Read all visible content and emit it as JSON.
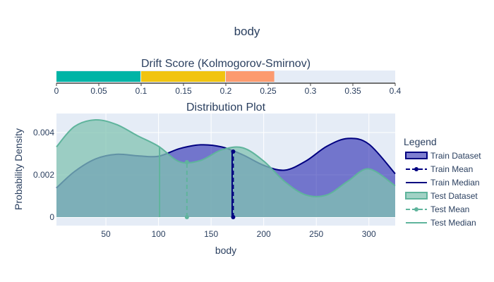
{
  "figure": {
    "title": "body"
  },
  "chart_data": [
    {
      "type": "bar",
      "orientation": "horizontal",
      "title": "Drift Score (Kolmogorov-Smirnov)",
      "xlim": [
        0,
        0.4
      ],
      "ticks": [
        "0",
        "0.05",
        "0.1",
        "0.15",
        "0.2",
        "0.25",
        "0.3",
        "0.35",
        "0.4"
      ],
      "tick_values": [
        0,
        0.05,
        0.1,
        0.15,
        0.2,
        0.25,
        0.3,
        0.35,
        0.4
      ],
      "segments": [
        {
          "from": 0,
          "to": 0.1,
          "color": "#00b4a6"
        },
        {
          "from": 0.1,
          "to": 0.2,
          "color": "#f1c40f"
        },
        {
          "from": 0.2,
          "to": 0.258,
          "color": "#fc9a6e"
        }
      ],
      "value": 0.258
    },
    {
      "type": "area",
      "title": "Distribution Plot",
      "xlabel": "body",
      "ylabel": "Probability Density",
      "xlim": [
        3,
        325
      ],
      "ylim": [
        -0.0004,
        0.0049
      ],
      "x_ticks": [
        "50",
        "100",
        "150",
        "200",
        "250",
        "300"
      ],
      "x_tick_values": [
        50,
        100,
        150,
        200,
        250,
        300
      ],
      "y_ticks": [
        "0",
        "0.002",
        "0.004"
      ],
      "y_tick_values": [
        0,
        0.002,
        0.004
      ],
      "grid": true,
      "series": [
        {
          "name": "Train Dataset",
          "color": "#000080",
          "fill": "rgba(20,20,170,0.55)",
          "x": [
            3,
            20,
            40,
            60,
            80,
            100,
            120,
            140,
            160,
            180,
            200,
            220,
            240,
            260,
            280,
            300,
            325
          ],
          "y": [
            0.00138,
            0.00215,
            0.00275,
            0.00297,
            0.0029,
            0.00288,
            0.00324,
            0.00342,
            0.00332,
            0.00295,
            0.00245,
            0.00222,
            0.00265,
            0.00335,
            0.00372,
            0.00345,
            0.00205
          ]
        },
        {
          "name": "Test Dataset",
          "color": "#5fb49c",
          "fill": "rgba(130,195,178,0.75)",
          "x": [
            3,
            20,
            40,
            60,
            80,
            100,
            120,
            140,
            160,
            180,
            200,
            220,
            240,
            260,
            280,
            300,
            325
          ],
          "y": [
            0.00332,
            0.00428,
            0.0046,
            0.00438,
            0.00385,
            0.00335,
            0.00262,
            0.00268,
            0.00318,
            0.00328,
            0.00265,
            0.00168,
            0.00105,
            0.00105,
            0.0017,
            0.00228,
            0.00148
          ]
        }
      ],
      "lines": [
        {
          "name": "Train Mean",
          "x": 171,
          "y": 0.0031,
          "color": "#000080",
          "dash": true,
          "marker": true
        },
        {
          "name": "Train Median",
          "x": 170,
          "y": 0.0031,
          "color": "#000080",
          "dash": false,
          "marker": false
        },
        {
          "name": "Test Mean",
          "x": 127,
          "y": 0.0026,
          "color": "#5fb49c",
          "dash": true,
          "marker": true
        },
        {
          "name": "Test Median",
          "x": 101,
          "y": 0.0033,
          "color": "#5fb49c",
          "dash": false,
          "marker": false
        }
      ],
      "legend": {
        "title": "Legend",
        "placement": "right",
        "items": [
          {
            "label": "Train Dataset",
            "kind": "area",
            "color": "#000080",
            "fill": "rgba(20,20,170,0.55)"
          },
          {
            "label": "Train Mean",
            "kind": "dash-marker",
            "color": "#000080"
          },
          {
            "label": "Train Median",
            "kind": "line",
            "color": "#000080"
          },
          {
            "label": "Test Dataset",
            "kind": "area",
            "color": "#5fb49c",
            "fill": "rgba(130,195,178,0.75)"
          },
          {
            "label": "Test Mean",
            "kind": "dash-marker",
            "color": "#5fb49c"
          },
          {
            "label": "Test Median",
            "kind": "line",
            "color": "#5fb49c"
          }
        ]
      }
    }
  ]
}
